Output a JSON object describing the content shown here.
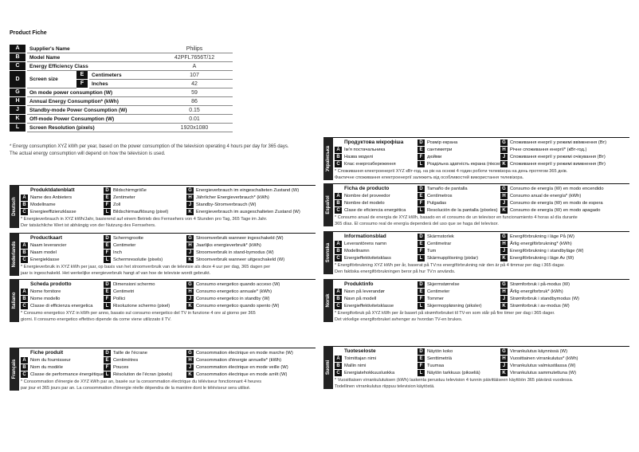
{
  "fiche": {
    "title": "Product Fiche",
    "rows": [
      {
        "key": "A",
        "label": "Supplier's Name",
        "value": "Philips"
      },
      {
        "key": "B",
        "label": "Model Name",
        "value": "42PFL7656T/12"
      },
      {
        "key": "C",
        "label": "Energy Efficiency Class",
        "value": "A"
      },
      {
        "key": "D",
        "label": "Screen size",
        "sub": [
          {
            "key": "E",
            "label": "Centimeters",
            "value": "107"
          },
          {
            "key": "F",
            "label": "Inches",
            "value": "42"
          }
        ]
      },
      {
        "key": "G",
        "label": "On mode power consumption (W)",
        "value": "59"
      },
      {
        "key": "H",
        "label": "Annual Energy Consumption* (kWh)",
        "value": "86"
      },
      {
        "key": "J",
        "label": "Standby-mode Power Consumption (W)",
        "value": "0.15"
      },
      {
        "key": "K",
        "label": "Off-mode Power Consumption (W)",
        "value": "0.01"
      },
      {
        "key": "L",
        "label": "Screen Resolution (pixels)",
        "value": "1920x1080"
      }
    ],
    "footnote": [
      "* Energy consumption XYZ kWh per year, based on the power consumption of the television operating 4 hours per day for 365 days.",
      "The actual energy consumption will depend on how the television is used."
    ]
  },
  "languages": [
    {
      "name": "Deutsch",
      "title": "Produktdatenblatt",
      "items": [
        {
          "key": "A",
          "text": "Name des Anbieters"
        },
        {
          "key": "B",
          "text": "Modellname"
        },
        {
          "key": "C",
          "text": "Energieeffizienzklasse"
        },
        {
          "key": "D",
          "text": "Bildschirmgröße"
        },
        {
          "key": "E",
          "text": "Zentimeter"
        },
        {
          "key": "F",
          "text": "Zoll"
        },
        {
          "key": "L",
          "text": "Bildschirmauflösung (pixel)"
        },
        {
          "key": "G",
          "text": "Energieverbrauch im eingeschalteten Zustand (W)"
        },
        {
          "key": "H",
          "text": "Jährlicher Energieverbrauch* (kWh)"
        },
        {
          "key": "J",
          "text": "Standby-Stromverbrauch (W)"
        },
        {
          "key": "K",
          "text": "Energieverbrauch im ausgeschalteten Zustand (W)"
        }
      ],
      "note": [
        "* Energieverbrauch in XYZ kWh/Jahr, basierend auf einem Betrieb des Fernsehers von 4 Stunden pro Tag, 365 Tage im Jahr.",
        "Der tatsächliche Wert ist abhängig von der Nutzung des Fernsehers."
      ]
    },
    {
      "name": "Nederlands",
      "title": "Productkaart",
      "items": [
        {
          "key": "A",
          "text": "Naam leverancier"
        },
        {
          "key": "B",
          "text": "Naam model"
        },
        {
          "key": "C",
          "text": "Energieklasse"
        },
        {
          "key": "D",
          "text": "Schermgrootte"
        },
        {
          "key": "E",
          "text": "Centimeter"
        },
        {
          "key": "F",
          "text": "Inch"
        },
        {
          "key": "L",
          "text": "Schermresolutie (pixels)"
        },
        {
          "key": "G",
          "text": "Stroomverbruik wanneer ingeschakeld (W)"
        },
        {
          "key": "H",
          "text": "Jaarlijks energieverbruik* (kWh)"
        },
        {
          "key": "J",
          "text": "Stroomverbruik in stand-bymodus (W)"
        },
        {
          "key": "K",
          "text": "Stroomverbruik wanneer uitgeschakeld (W)"
        }
      ],
      "note": [
        "* Energieverbruik in XYZ kWh per jaar, op basis van het stroomverbruik van de televisie als deze 4 uur per dag, 365 dagen per",
        "jaar is ingeschakeld. Het werkelijke energieverbruik hangt af van hoe de televisie wordt gebruikt."
      ]
    },
    {
      "name": "Italiano",
      "title": "Scheda prodotto",
      "items": [
        {
          "key": "A",
          "text": "Nome fornitore"
        },
        {
          "key": "B",
          "text": "Nome modello"
        },
        {
          "key": "C",
          "text": "Classe di efficienza energetica"
        },
        {
          "key": "D",
          "text": "Dimensioni schermo"
        },
        {
          "key": "E",
          "text": "Centimetri"
        },
        {
          "key": "F",
          "text": "Pollici"
        },
        {
          "key": "L",
          "text": "Risoluzione schermo (pixel)"
        },
        {
          "key": "G",
          "text": "Consumo energetico quando acceso (W)"
        },
        {
          "key": "H",
          "text": "Consumo energetico annuale* (kWh)"
        },
        {
          "key": "J",
          "text": "Consumo energetico in standby (W)"
        },
        {
          "key": "K",
          "text": "Consumo energetico quando spento (W)"
        }
      ],
      "note": [
        "* Consumo energetico XYZ in kWh per anno, basato sul consumo energetico del TV in funzione 4 ore al giorno per 365",
        "giorni. Il consumo energetico effettivo dipende da come viene utilizzato il TV."
      ]
    },
    {
      "name": "Français",
      "title": "Fiche produit",
      "items": [
        {
          "key": "A",
          "text": "Nom du fournisseur"
        },
        {
          "key": "B",
          "text": "Nom du modèle"
        },
        {
          "key": "C",
          "text": "Classe de performance énergétique"
        },
        {
          "key": "D",
          "text": "Taille de l'écrane"
        },
        {
          "key": "E",
          "text": "Centimètres"
        },
        {
          "key": "F",
          "text": "Pouces"
        },
        {
          "key": "L",
          "text": "Résolution de l'écran (pixels)"
        },
        {
          "key": "G",
          "text": "Consommation électrique en mode marche (W)"
        },
        {
          "key": "H",
          "text": "Consommation d'énergie annuelle* (kWh)"
        },
        {
          "key": "J",
          "text": "Consommation électrique en mode veille (W)"
        },
        {
          "key": "K",
          "text": "Consommation électrique en mode arrêt (W)"
        }
      ],
      "note": [
        "* Consommation d'énergie de XYZ kWh par an, basée sur la consommation électrique du téléviseur fonctionnant 4 heures",
        "par jour et 365 jours par an. La consommation d'énergie réelle dépendra de la manière dont le téléviseur sera utilisé."
      ]
    },
    {
      "name": "Українська",
      "title": "Продуктова мікрофіша",
      "items": [
        {
          "key": "A",
          "text": "Ім'я постачальника"
        },
        {
          "key": "B",
          "text": "Назва моделі"
        },
        {
          "key": "C",
          "text": "Клас енергозбереження"
        },
        {
          "key": "D",
          "text": "Розмір екрана"
        },
        {
          "key": "E",
          "text": "сантиметри"
        },
        {
          "key": "F",
          "text": "дюйми"
        },
        {
          "key": "L",
          "text": "Роздільна здатність екрана (пікселі)"
        },
        {
          "key": "G",
          "text": "Споживання енергії у режимі ввімкнення (Вт)"
        },
        {
          "key": "H",
          "text": "Річне споживання енергії* (кВт-год.)"
        },
        {
          "key": "J",
          "text": "Споживання енергії у режимі очікування (Вт)"
        },
        {
          "key": "K",
          "text": "Споживання енергії у режимі вимкнення (Вт)"
        }
      ],
      "note": [
        "* Споживання електроенергії XYZ кВт-год. на рік на основі 4 годин роботи телевізора на день протягом 365 днів.",
        "Фактичне споживання електроенергії залежить від особливостей використання телевізора."
      ]
    },
    {
      "name": "Español",
      "title": "Ficha de producto",
      "items": [
        {
          "key": "A",
          "text": "Nombre del proveedor"
        },
        {
          "key": "B",
          "text": "Nombre del modelo"
        },
        {
          "key": "C",
          "text": "Clase de eficiencia energética"
        },
        {
          "key": "D",
          "text": "Tamaño de pantalla"
        },
        {
          "key": "E",
          "text": "Centímetros"
        },
        {
          "key": "F",
          "text": "Pulgadas"
        },
        {
          "key": "L",
          "text": "Resolución de la pantalla (píxeles)"
        },
        {
          "key": "G",
          "text": "Consumo de energía (W) en modo encendido"
        },
        {
          "key": "H",
          "text": "Consumo anual de energía* (kWh)"
        },
        {
          "key": "J",
          "text": "Consumo de energía (W) en modo de espera"
        },
        {
          "key": "K",
          "text": "Consumo de energía (W) en modo apagado"
        }
      ],
      "note": [
        "* Consumo anual de energía de XYZ kWh, basado en el consumo de un televisor en funcionamiento 4 horas al día durante",
        "365 días. El consumo real de energía dependerá del uso que se haga del televisor."
      ]
    },
    {
      "name": "Svenska",
      "title": "Informationsblad",
      "items": [
        {
          "key": "A",
          "text": "Leverantörens namn"
        },
        {
          "key": "B",
          "text": "Modellnamn"
        },
        {
          "key": "C",
          "text": "Energieffektivitetsklass"
        },
        {
          "key": "D",
          "text": "Skärmstorlek"
        },
        {
          "key": "E",
          "text": "Centimetrar"
        },
        {
          "key": "F",
          "text": "Tum"
        },
        {
          "key": "L",
          "text": "Skärmupplösning (pixlar)"
        },
        {
          "key": "G",
          "text": "Energiförbrukning i läge På (W)"
        },
        {
          "key": "H",
          "text": "Årlig energiförbrukning* (kWh)"
        },
        {
          "key": "J",
          "text": "Energiförbrukning i standbyläge (W)"
        },
        {
          "key": "K",
          "text": "Energiförbrukning i läge Av (W)"
        }
      ],
      "note": [
        "* Energiförbrukning XYZ kWh per år, baserat på TV:ns energiförbrukning när den är på 4 timmar per dag i 365 dagar.",
        "Den faktiska energiförbrukningen beror på hur TV:n används."
      ]
    },
    {
      "name": "Norsk",
      "title": "Produktinfo",
      "items": [
        {
          "key": "A",
          "text": "Navn på leverandør"
        },
        {
          "key": "B",
          "text": "Navn på modell"
        },
        {
          "key": "C",
          "text": "Energieffektivitetsklasse"
        },
        {
          "key": "D",
          "text": "Skjermstørrelse"
        },
        {
          "key": "E",
          "text": "Centimeter"
        },
        {
          "key": "F",
          "text": "Tommer"
        },
        {
          "key": "L",
          "text": "Skjermoppløsning (piksler)"
        },
        {
          "key": "G",
          "text": "Strømforbruk i på-modus (W)"
        },
        {
          "key": "H",
          "text": "Årlig energiforbruk* (kWh)"
        },
        {
          "key": "J",
          "text": "Strømforbruk i standbymodus (W)"
        },
        {
          "key": "K",
          "text": "Strømforbruk i av-modus (W)"
        }
      ],
      "note": [
        "* Energiforbruk på XYZ kWh per år basert på strømforbruket til TV-en som står på fire timer per dag i 365 dager.",
        "Det virkelige energiforbruket avhenger av hvordan TV-en brukes."
      ]
    },
    {
      "name": "Suomi",
      "title": "Tuoteseloste",
      "items": [
        {
          "key": "A",
          "text": "Toimittajan nimi"
        },
        {
          "key": "B",
          "text": "Mallin nimi"
        },
        {
          "key": "C",
          "text": "Energiatehokkuusluokka"
        },
        {
          "key": "D",
          "text": "Näytön koko"
        },
        {
          "key": "E",
          "text": "Senttimetriä"
        },
        {
          "key": "F",
          "text": "Tuumaa"
        },
        {
          "key": "L",
          "text": "Näytön tarkkuus (pikseliä)"
        },
        {
          "key": "G",
          "text": "Virrankulutus käynnissä (W)"
        },
        {
          "key": "H",
          "text": "Vuosittainen virrankulutus* (kWh)"
        },
        {
          "key": "J",
          "text": "Virrankulutus valmiustilassa (W)"
        },
        {
          "key": "K",
          "text": "Virrankulutus sammutettuna (W)"
        }
      ],
      "note": [
        "* Vuosittaisen virrankulutuksen (kWh) laskenta perustuu television 4 tunnin päivittäiseen käyttöön 365 päivänä vuodessa.",
        "Todellinen virrankulutus riippuu television käytöstä."
      ]
    }
  ]
}
